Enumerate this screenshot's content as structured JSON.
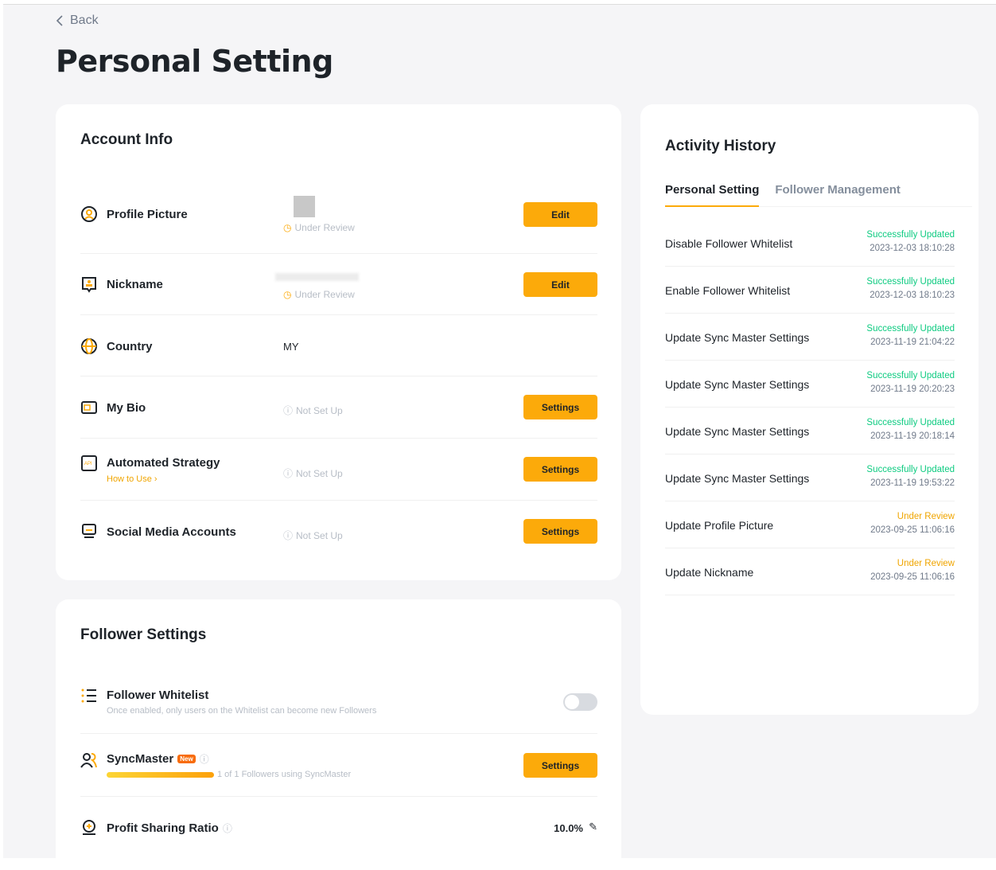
{
  "back_label": "Back",
  "page_title": "Personal Setting",
  "account_info": {
    "title": "Account Info",
    "rows": [
      {
        "label": "Profile Picture",
        "status": "Under Review",
        "button": "Edit"
      },
      {
        "label": "Nickname",
        "status": "Under Review",
        "button": "Edit"
      },
      {
        "label": "Country",
        "value": "MY"
      },
      {
        "label": "My Bio",
        "status": "Not Set Up",
        "button": "Settings"
      },
      {
        "label": "Automated Strategy",
        "link": "How to Use",
        "status": "Not Set Up",
        "button": "Settings"
      },
      {
        "label": "Social Media Accounts",
        "status": "Not Set Up",
        "button": "Settings"
      }
    ]
  },
  "follower_settings": {
    "title": "Follower Settings",
    "whitelist": {
      "label": "Follower Whitelist",
      "description": "Once enabled, only users on the Whitelist can become new Followers",
      "enabled": false
    },
    "syncmaster": {
      "label": "SyncMaster",
      "badge": "New",
      "progress_text": "1 of 1 Followers using SyncMaster",
      "progress": 1.0,
      "button": "Settings"
    },
    "profit_sharing": {
      "label": "Profit Sharing Ratio",
      "value": "10.0%"
    }
  },
  "activity": {
    "title": "Activity History",
    "tabs": [
      "Personal Setting",
      "Follower Management"
    ],
    "active_tab": 0,
    "items": [
      {
        "title": "Disable Follower Whitelist",
        "status": "Successfully Updated",
        "date": "2023-12-03 18:10:28"
      },
      {
        "title": "Enable Follower Whitelist",
        "status": "Successfully Updated",
        "date": "2023-12-03 18:10:23"
      },
      {
        "title": "Update Sync Master Settings",
        "status": "Successfully Updated",
        "date": "2023-11-19 21:04:22"
      },
      {
        "title": "Update Sync Master Settings",
        "status": "Successfully Updated",
        "date": "2023-11-19 20:20:23"
      },
      {
        "title": "Update Sync Master Settings",
        "status": "Successfully Updated",
        "date": "2023-11-19 20:18:14"
      },
      {
        "title": "Update Sync Master Settings",
        "status": "Successfully Updated",
        "date": "2023-11-19 19:53:22"
      },
      {
        "title": "Update Profile Picture",
        "status": "Under Review",
        "date": "2023-09-25 11:06:16"
      },
      {
        "title": "Update Nickname",
        "status": "Under Review",
        "date": "2023-09-25 11:06:16"
      }
    ]
  },
  "colors": {
    "accent": "#fcaa0a",
    "success": "#0ecb81",
    "review": "#f0a500",
    "muted": "#b7bdc6"
  }
}
